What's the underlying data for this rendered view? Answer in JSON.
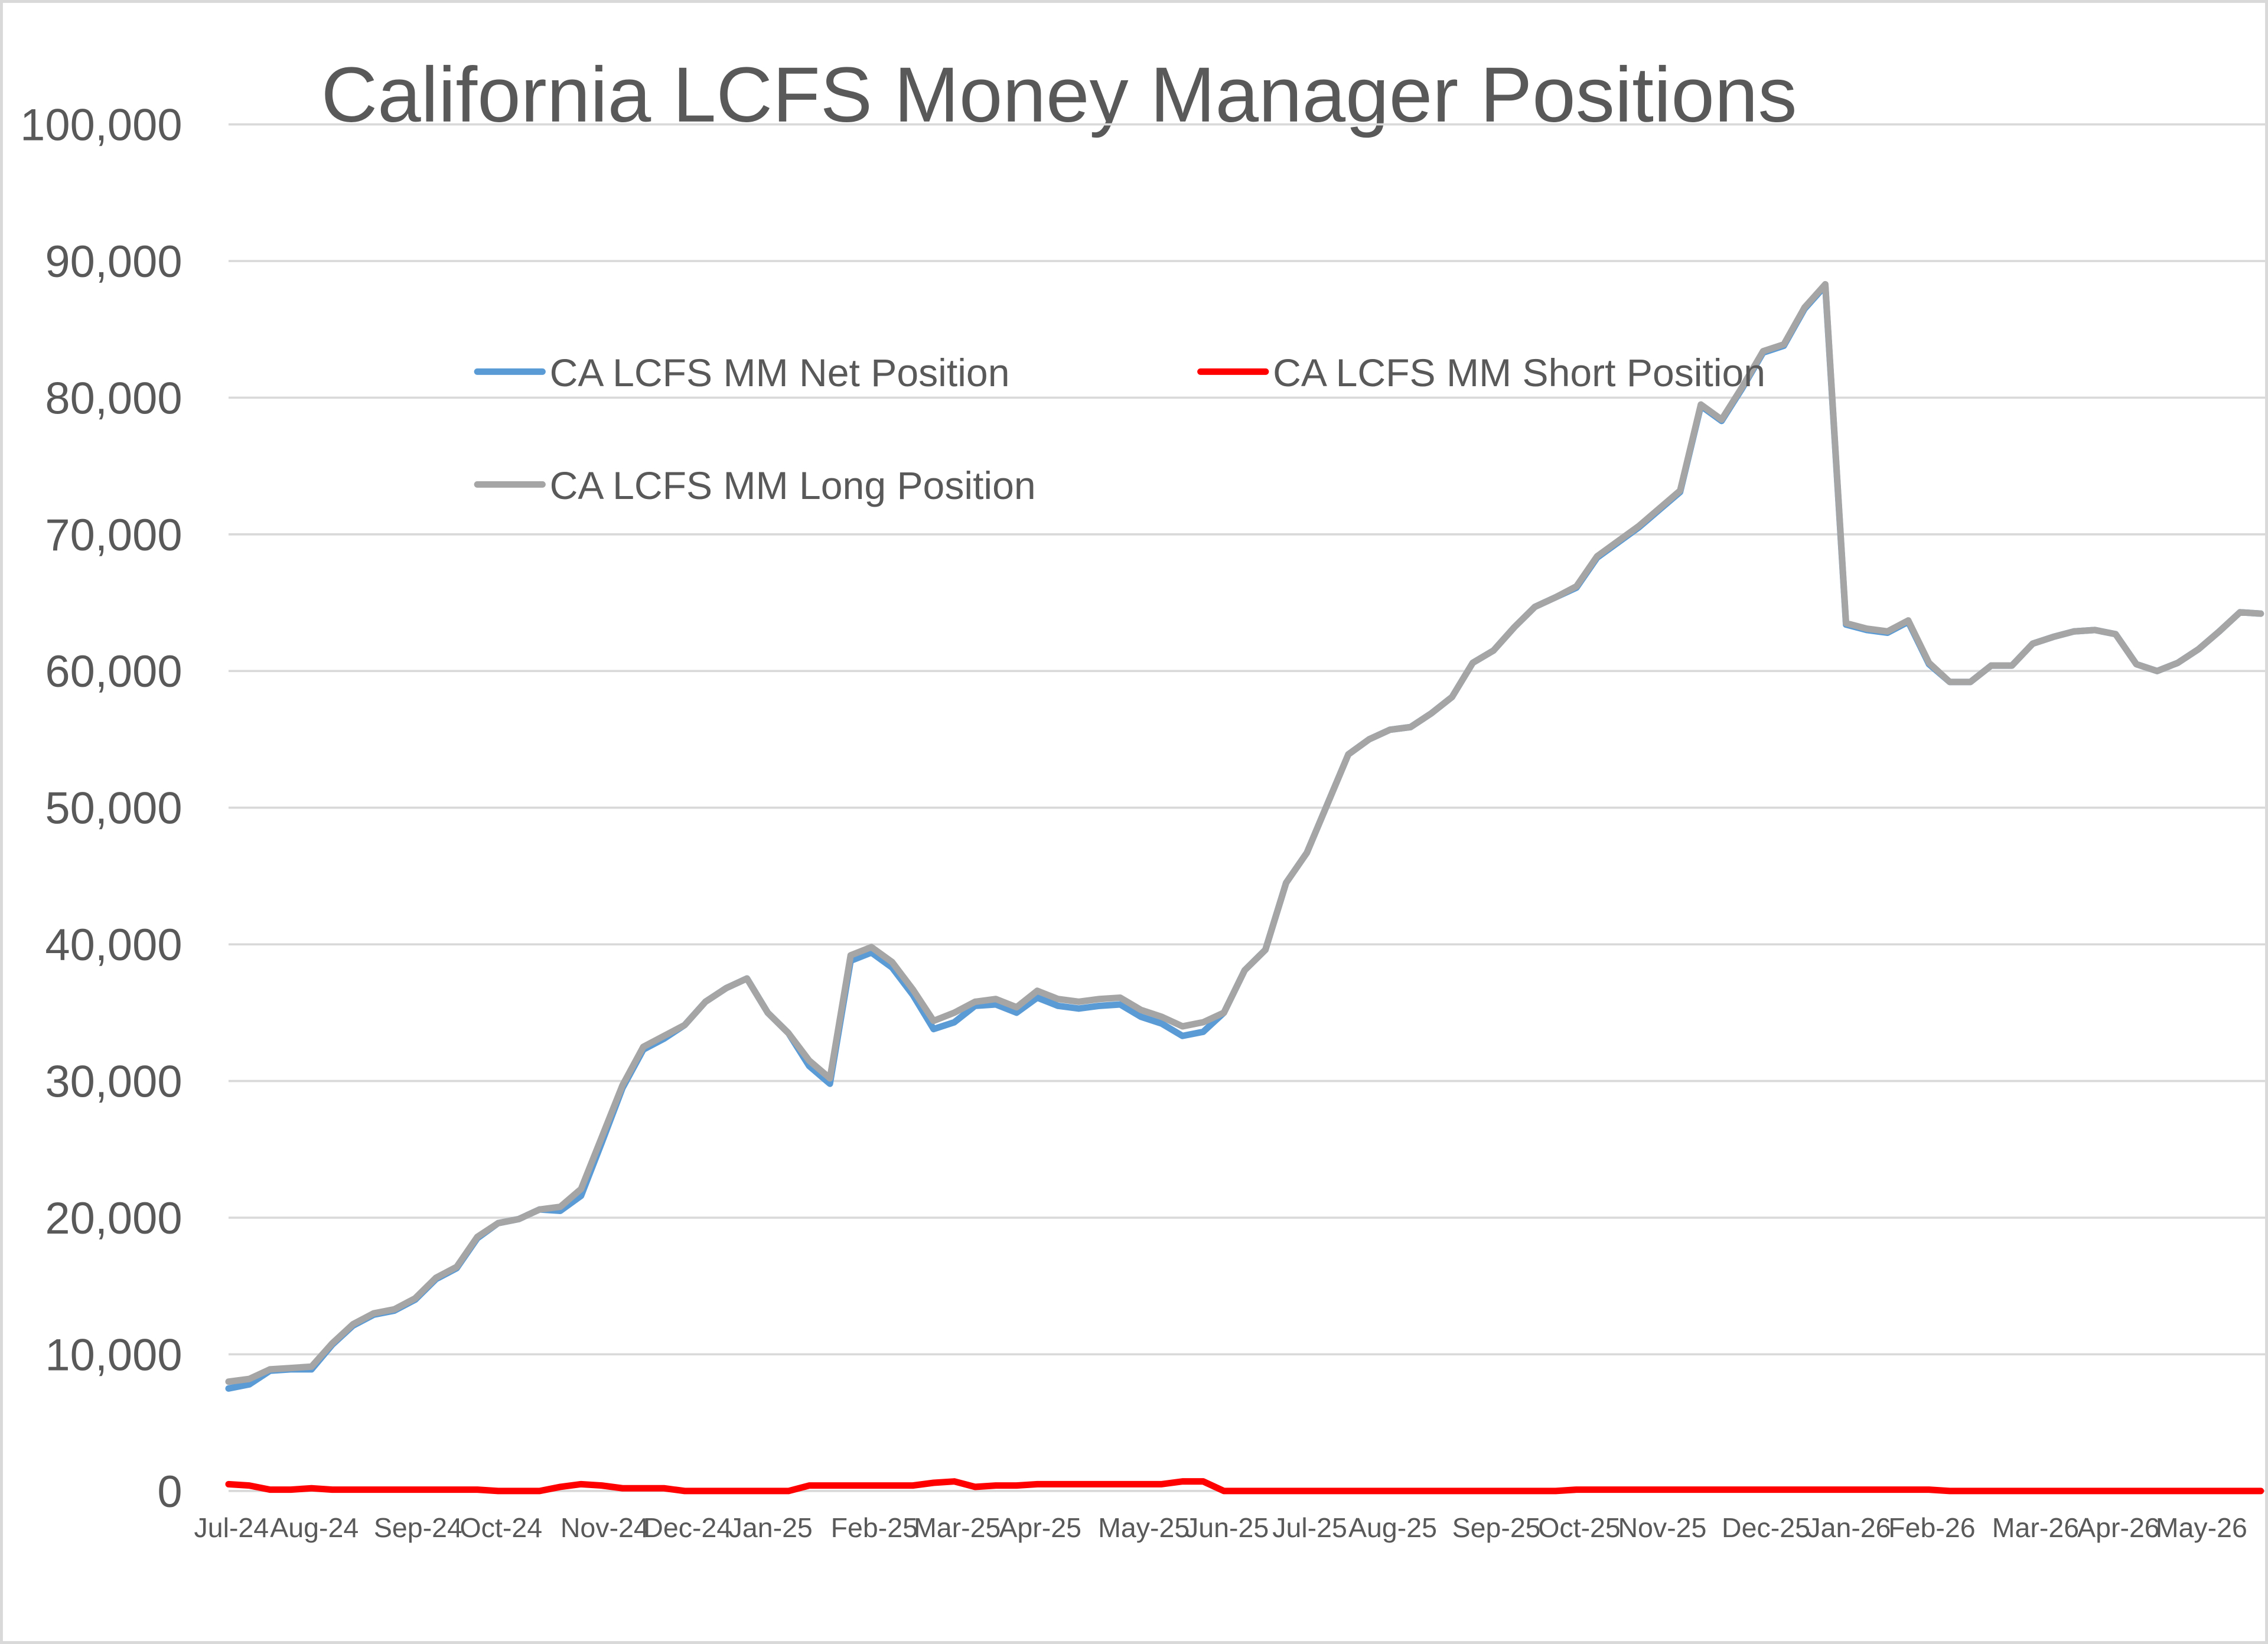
{
  "chart_data": {
    "type": "line",
    "title": "California LCFS Money Manager Positions",
    "categories": [
      "Jul-24",
      null,
      null,
      null,
      "Aug-24",
      null,
      null,
      null,
      null,
      "Sep-24",
      null,
      null,
      null,
      "Oct-24",
      null,
      null,
      null,
      null,
      "Nov-24",
      null,
      null,
      null,
      "Dec-24",
      null,
      null,
      null,
      "Jan-25",
      null,
      null,
      null,
      null,
      "Feb-25",
      null,
      null,
      null,
      "Mar-25",
      null,
      null,
      null,
      "Apr-25",
      null,
      null,
      null,
      null,
      "May-25",
      null,
      null,
      null,
      "Jun-25",
      null,
      null,
      null,
      "Jul-25",
      null,
      null,
      null,
      "Aug-25",
      null,
      null,
      null,
      null,
      "Sep-25",
      null,
      null,
      null,
      "Oct-25",
      null,
      null,
      null,
      "Nov-25",
      null,
      null,
      null,
      null,
      "Dec-25",
      null,
      null,
      null,
      "Jan-26",
      null,
      null,
      null,
      "Feb-26",
      null,
      null,
      null,
      null,
      "Mar-26",
      null,
      null,
      null,
      "Apr-26",
      null,
      null,
      null,
      "May-26",
      null,
      null,
      null
    ],
    "series": [
      {
        "name": "CA LCFS MM Net Position",
        "color": "#5b9bd5",
        "values": [
          7500,
          7800,
          8800,
          8900,
          8900,
          10700,
          12100,
          12900,
          13200,
          14000,
          15500,
          16300,
          18500,
          19600,
          19900,
          20600,
          20500,
          21600,
          25500,
          29500,
          32300,
          33100,
          34100,
          35800,
          36800,
          37500,
          35000,
          33500,
          31100,
          29800,
          38800,
          39400,
          38300,
          36300,
          33800,
          34300,
          35500,
          35600,
          35000,
          36100,
          35500,
          35300,
          35500,
          35600,
          34700,
          34200,
          33300,
          33600,
          35000,
          38100,
          39600,
          44500,
          46700,
          50300,
          53900,
          55000,
          55700,
          55900,
          56900,
          58100,
          60600,
          61500,
          63200,
          64700,
          65400,
          66100,
          68300,
          69400,
          70500,
          71800,
          73100,
          79400,
          78300,
          80700,
          83300,
          83800,
          86500,
          88200,
          63400,
          63000,
          62800,
          63600,
          60500,
          59200,
          59200,
          60400,
          60400,
          62000,
          62500,
          62900,
          63000,
          62700,
          60500,
          60000,
          60600,
          61600,
          62900,
          64300,
          64200
        ]
      },
      {
        "name": "CA LCFS MM Short Position",
        "color": "#ff0000",
        "values": [
          500,
          400,
          100,
          100,
          200,
          100,
          100,
          100,
          100,
          100,
          100,
          100,
          100,
          0,
          0,
          0,
          300,
          500,
          400,
          200,
          200,
          200,
          0,
          0,
          0,
          0,
          0,
          0,
          400,
          400,
          400,
          400,
          400,
          400,
          600,
          700,
          300,
          400,
          400,
          500,
          500,
          500,
          500,
          500,
          500,
          500,
          700,
          700,
          0,
          0,
          0,
          0,
          0,
          0,
          0,
          0,
          0,
          0,
          0,
          0,
          0,
          0,
          0,
          0,
          0,
          100,
          100,
          100,
          100,
          100,
          100,
          100,
          100,
          100,
          100,
          100,
          100,
          100,
          100,
          100,
          100,
          100,
          100,
          0,
          0,
          0,
          0,
          0,
          0,
          0,
          0,
          0,
          0,
          0,
          0,
          0,
          0,
          0,
          0
        ]
      },
      {
        "name": "CA LCFS MM Long Position",
        "color": "#a5a5a5",
        "values": [
          8000,
          8200,
          8900,
          9000,
          9100,
          10800,
          12200,
          13000,
          13300,
          14100,
          15600,
          16400,
          18600,
          19600,
          19900,
          20600,
          20800,
          22100,
          25900,
          29700,
          32500,
          33300,
          34100,
          35800,
          36800,
          37500,
          35000,
          33500,
          31500,
          30200,
          39200,
          39800,
          38700,
          36700,
          34400,
          35000,
          35800,
          36000,
          35400,
          36600,
          36000,
          35800,
          36000,
          36100,
          35200,
          34700,
          34000,
          34300,
          35000,
          38100,
          39600,
          44500,
          46700,
          50300,
          53900,
          55000,
          55700,
          55900,
          56900,
          58100,
          60600,
          61500,
          63200,
          64700,
          65400,
          66200,
          68400,
          69500,
          70600,
          71900,
          73200,
          79500,
          78400,
          80800,
          83400,
          83900,
          86600,
          88300,
          63500,
          63100,
          62900,
          63700,
          60600,
          59200,
          59200,
          60400,
          60400,
          62000,
          62500,
          62900,
          63000,
          62700,
          60500,
          60000,
          60600,
          61600,
          62900,
          64300,
          64200
        ]
      }
    ],
    "ylim": [
      0,
      100000
    ],
    "yticks": [
      0,
      {
        "value": 10000,
        "label": "10,000"
      },
      {
        "value": 20000,
        "label": "20,000"
      },
      {
        "value": 30000,
        "label": "30,000"
      },
      {
        "value": 40000,
        "label": "40,000"
      },
      {
        "value": 50000,
        "label": "50,000"
      },
      {
        "value": 60000,
        "label": "60,000"
      },
      {
        "value": 70000,
        "label": "70,000"
      },
      {
        "value": 80000,
        "label": "80,000"
      },
      {
        "value": 90000,
        "label": "90,000"
      },
      {
        "value": 100000,
        "label": "100,000"
      }
    ],
    "grid": true
  }
}
